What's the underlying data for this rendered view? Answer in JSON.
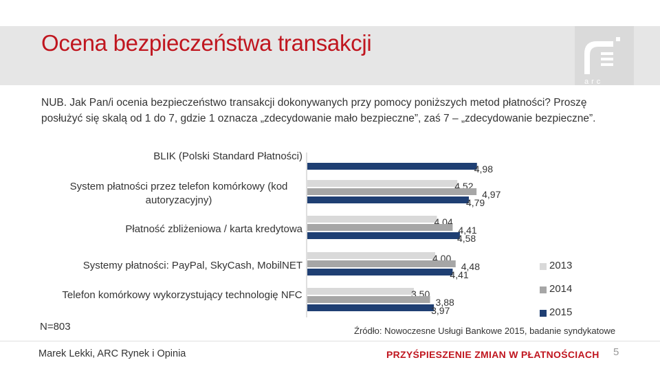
{
  "header": {
    "title": "Ocena bezpieczeństwa transakcji",
    "logo_text": "arc"
  },
  "question": "NUB. Jak Pan/i ocenia bezpieczeństwo transakcji dokonywanych przy pomocy poniższych metod płatności? Proszę posłużyć się skalą od 1 do 7, gdzie 1 oznacza „zdecydowanie mało bezpieczne”, zaś 7 – „zdecydowanie bezpieczne”.",
  "sample": "N=803",
  "source": "Źródło: Nowoczesne Usługi Bankowe 2015, badanie syndykatowe",
  "footer": {
    "author": "Marek Lekki, ARC Rynek i Opinia",
    "tagline": "PRZYŚPIESZENIE ZMIAN W PŁATNOŚCIACH",
    "page": "5"
  },
  "colors": {
    "title": "#c0161f",
    "s2013": "#d9d9d9",
    "s2014": "#a6a6a6",
    "s2015": "#1f3f73"
  },
  "chart_data": {
    "type": "bar",
    "orientation": "horizontal",
    "categories": [
      "BLIK (Polski Standard Płatności)",
      "System płatności przez telefon komórkowy (kod autoryzacyjny)",
      "Płatność zbliżeniowa / karta kredytowa",
      "Systemy płatności: PayPal, SkyCash, MobilNET",
      "Telefon komórkowy wykorzystujący technologię NFC"
    ],
    "series": [
      {
        "name": "2013",
        "values": [
          null,
          4.52,
          4.04,
          4.0,
          3.5
        ],
        "labels": [
          "",
          "4,52",
          "4,04",
          "4,00",
          "3,50"
        ]
      },
      {
        "name": "2014",
        "values": [
          null,
          4.97,
          4.41,
          4.48,
          3.88
        ],
        "labels": [
          "",
          "4,97",
          "4,41",
          "4,48",
          "3,88"
        ]
      },
      {
        "name": "2015",
        "values": [
          4.98,
          4.79,
          4.58,
          4.41,
          3.97
        ],
        "labels": [
          "4,98",
          "4,79",
          "4,58",
          "4,41",
          "3,97"
        ]
      }
    ],
    "legend": [
      "2013",
      "2014",
      "2015"
    ],
    "legend_position": "right",
    "xlim": [
      1,
      5
    ],
    "grid": false
  }
}
